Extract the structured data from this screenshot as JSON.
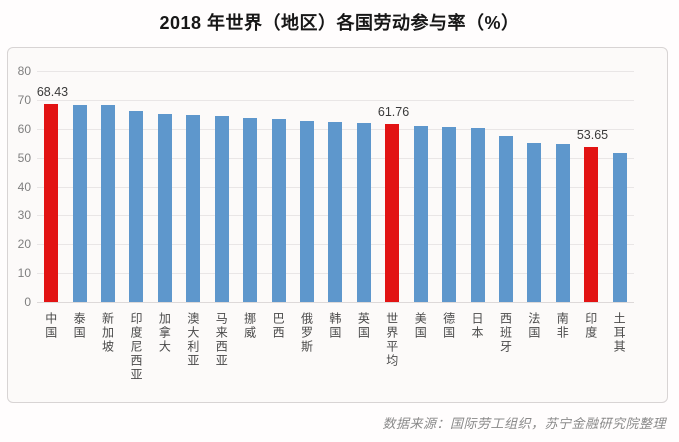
{
  "title": "2018 年世界（地区）各国劳动参与率（%）",
  "source_note": "数据来源：国际劳工组织，苏宁金融研究院整理",
  "colors": {
    "bar_blue": "#5e97cc",
    "bar_red": "#e21313",
    "gridline": "#e9e6e6",
    "axis_text": "#7f7f7f",
    "category_text": "#4a4a4a",
    "value_label_text": "#3a3a3a",
    "card_border": "#d8d4d4",
    "card_bg": "#fcfaf9",
    "page_bg": "#fffdfd"
  },
  "chart_data": {
    "type": "bar",
    "title": "2018 年世界（地区）各国劳动参与率（%）",
    "xlabel": "",
    "ylabel": "",
    "ylim": [
      0,
      80
    ],
    "yticks": [
      0,
      10,
      20,
      30,
      40,
      50,
      60,
      70,
      80
    ],
    "grid": true,
    "legend": "none",
    "categories": [
      "中国",
      "泰国",
      "新加坡",
      "印度尼西亚",
      "加拿大",
      "澳大利亚",
      "马来西亚",
      "挪威",
      "巴西",
      "俄罗斯",
      "韩国",
      "英国",
      "世界平均",
      "美国",
      "德国",
      "日本",
      "西班牙",
      "法国",
      "南非",
      "印度",
      "土耳其"
    ],
    "values": [
      68.43,
      68.2,
      68.1,
      66.2,
      65.0,
      64.7,
      64.4,
      63.8,
      63.3,
      62.6,
      62.4,
      62.0,
      61.76,
      61.0,
      60.6,
      60.2,
      57.4,
      55.2,
      54.6,
      53.65,
      51.5
    ],
    "bar_color_keys": [
      "red",
      "blue",
      "blue",
      "blue",
      "blue",
      "blue",
      "blue",
      "blue",
      "blue",
      "blue",
      "blue",
      "blue",
      "red",
      "blue",
      "blue",
      "blue",
      "blue",
      "blue",
      "blue",
      "red",
      "blue"
    ],
    "data_labels": [
      "68.43",
      null,
      null,
      null,
      null,
      null,
      null,
      null,
      null,
      null,
      null,
      null,
      "61.76",
      null,
      null,
      null,
      null,
      null,
      null,
      "53.65",
      null
    ]
  }
}
